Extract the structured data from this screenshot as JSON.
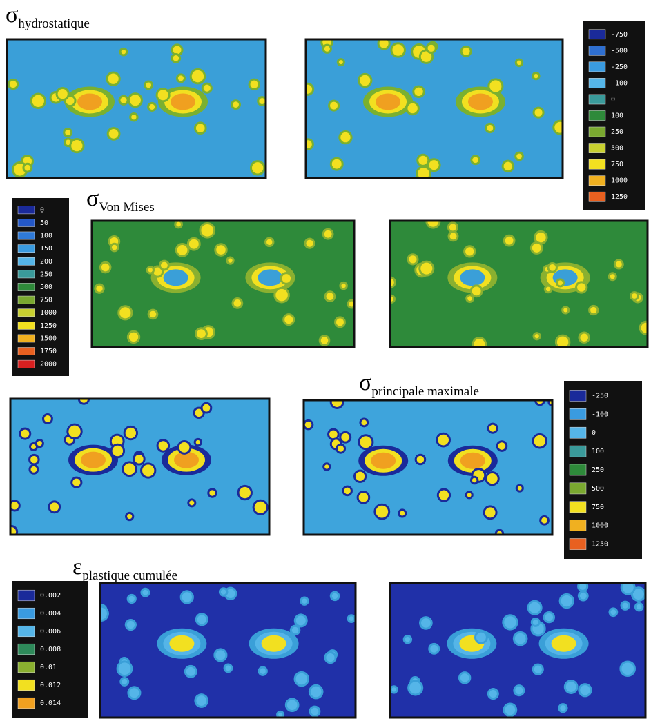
{
  "panels": [
    {
      "symbol": "σ",
      "subscript": "hydrostatique",
      "legend": {
        "labels": [
          "-750",
          "-500",
          "-250",
          "-100",
          "0",
          "100",
          "250",
          "500",
          "750",
          "1000",
          "1250"
        ],
        "colors": [
          "#1a2a9a",
          "#2f6fd0",
          "#3a9be0",
          "#55b5e8",
          "#3a9a9a",
          "#2e8a3a",
          "#7aa830",
          "#c8d030",
          "#f2e020",
          "#f0b020",
          "#e86020"
        ]
      }
    },
    {
      "symbol": "σ",
      "subscript": "Von Mises",
      "legend": {
        "labels": [
          "0",
          "50",
          "100",
          "150",
          "200",
          "250",
          "500",
          "750",
          "1000",
          "1250",
          "1500",
          "1750",
          "2000"
        ],
        "colors": [
          "#1a2a9a",
          "#2458c8",
          "#2f7ad8",
          "#3a9be0",
          "#55b5e8",
          "#3a9a9a",
          "#2e8a3a",
          "#7aa830",
          "#c8d030",
          "#f2e020",
          "#f0b020",
          "#e86020",
          "#d82020"
        ]
      }
    },
    {
      "symbol": "σ",
      "subscript": "principale maximale",
      "legend": {
        "labels": [
          "-250",
          "-100",
          "0",
          "100",
          "250",
          "500",
          "750",
          "1000",
          "1250"
        ],
        "colors": [
          "#1a2a9a",
          "#3a9be0",
          "#55b5e8",
          "#3a9a9a",
          "#2e8a3a",
          "#7aa830",
          "#f2e020",
          "#f0b020",
          "#e86020"
        ]
      }
    },
    {
      "symbol": "ε",
      "subscript": "plastique cumulée",
      "legend": {
        "labels": [
          "0.002",
          "0.004",
          "0.006",
          "0.008",
          "0.01",
          "0.012",
          "0.014"
        ],
        "colors": [
          "#1a2a9a",
          "#3a9be0",
          "#55b5e8",
          "#2e8a5a",
          "#8ab030",
          "#f2e020",
          "#f0a020"
        ]
      }
    }
  ]
}
